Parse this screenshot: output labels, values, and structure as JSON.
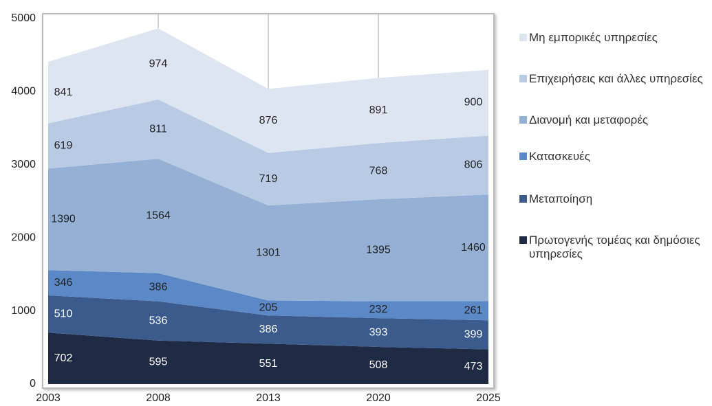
{
  "chart_data": {
    "type": "stacked_area",
    "categories": [
      "2003",
      "2008",
      "2013",
      "2020",
      "2025"
    ],
    "series": [
      {
        "name": "Πρωτογενής τομέας και δημόσιες υπηρεσίες",
        "color": "#1f2a44",
        "values": [
          702,
          595,
          551,
          508,
          473
        ]
      },
      {
        "name": "Μεταποίηση",
        "color": "#3b5b8c",
        "values": [
          510,
          536,
          386,
          393,
          399
        ]
      },
      {
        "name": "Κατασκευές",
        "color": "#5b88c6",
        "values": [
          346,
          386,
          205,
          232,
          261
        ]
      },
      {
        "name": "Διανομή και μεταφορές",
        "color": "#94b0d4",
        "values": [
          1390,
          1564,
          1301,
          1395,
          1460
        ]
      },
      {
        "name": "Επιχειρήσεις και άλλες υπηρεσίες",
        "color": "#b9cbe4",
        "values": [
          619,
          811,
          719,
          768,
          806
        ]
      },
      {
        "name": "Μη εμπορικές υπηρεσίες",
        "color": "#dde5f1",
        "values": [
          841,
          974,
          876,
          891,
          900
        ]
      }
    ],
    "ylim": [
      0,
      5000
    ],
    "yticks": [
      0,
      1000,
      2000,
      3000,
      4000,
      5000
    ],
    "grid": true,
    "legend": "right"
  }
}
